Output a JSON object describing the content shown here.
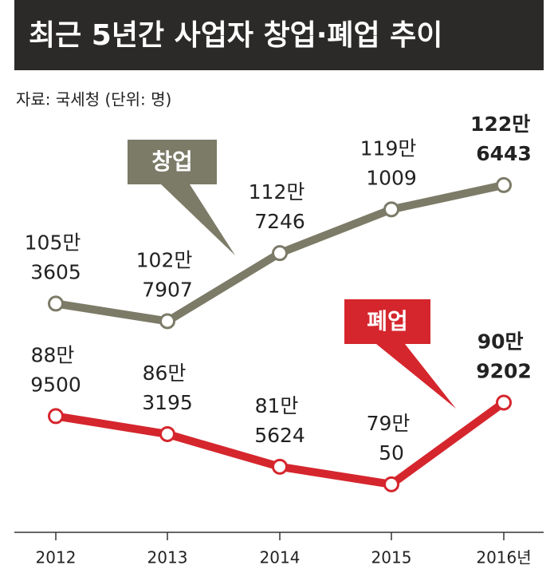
{
  "chart_data": {
    "type": "line",
    "title": "최근 5년간 사업자 창업·폐업 추이",
    "subtitle": "자료: 국세청 (단위: 명)",
    "categories": [
      "2012",
      "2013",
      "2014",
      "2015",
      "2016년"
    ],
    "series": [
      {
        "name": "창업",
        "color": "#7c7b68",
        "values": [
          1053605,
          1027907,
          1127246,
          1191009,
          1226443
        ],
        "value_labels": [
          "105만 3605",
          "102만 7907",
          "112만 7246",
          "119만 1009",
          "122만 6443"
        ]
      },
      {
        "name": "폐업",
        "color": "#d5262d",
        "values": [
          889500,
          863195,
          815624,
          790050,
          909202
        ],
        "value_labels": [
          "88만 9500",
          "86만 3195",
          "81만 5624",
          "79만 50",
          "90만 9202"
        ]
      }
    ],
    "ylim": [
      720000,
      1380000
    ]
  }
}
